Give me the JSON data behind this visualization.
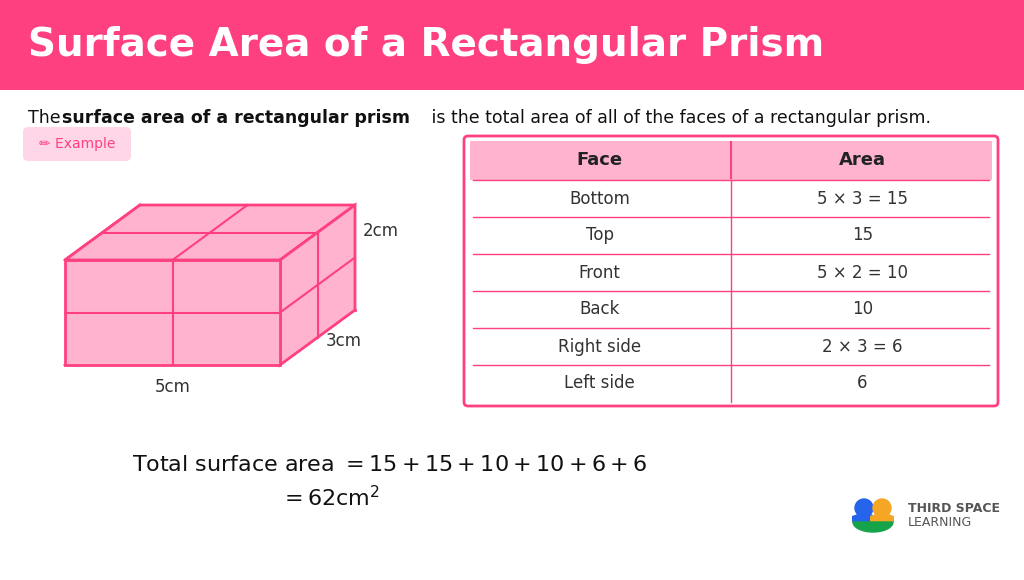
{
  "title": "Surface Area of a Rectangular Prism",
  "title_bg_color": "#FF4080",
  "title_text_color": "#FFFFFF",
  "bg_color": "#FFFFFF",
  "prism_fill": "#FFB3CF",
  "prism_edge": "#FF4080",
  "dim_labels": [
    "2cm",
    "3cm",
    "5cm"
  ],
  "table_header_bg": "#FFB3CF",
  "table_border": "#FF4080",
  "table_faces": [
    "Bottom",
    "Top",
    "Front",
    "Back",
    "Right side",
    "Left side"
  ],
  "table_areas": [
    "5 × 3 = 15",
    "15",
    "5 × 2 = 10",
    "10",
    "2 × 3 = 6",
    "6"
  ],
  "example_bg": "#FFD6E8",
  "example_text_color": "#FF4080",
  "formula_color": "#111111",
  "logo_text1": "THIRD SPACE",
  "logo_text2": "LEARNING"
}
